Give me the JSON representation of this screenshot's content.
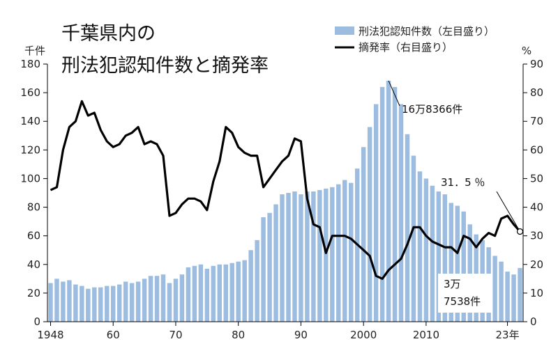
{
  "chart_data": {
    "type": "bar+line",
    "title_lines": [
      "千葉県内の",
      "刑法犯認知件数と摘発率"
    ],
    "y_left_unit": "千件",
    "y_right_unit": "%",
    "ylim_left": [
      0,
      180
    ],
    "ylim_right": [
      0,
      90
    ],
    "y_left_ticks": [
      "0",
      "20",
      "40",
      "60",
      "80",
      "100",
      "120",
      "140",
      "160",
      "180"
    ],
    "y_right_ticks": [
      "0",
      "10",
      "20",
      "30",
      "40",
      "50",
      "60",
      "70",
      "80",
      "90"
    ],
    "x_ticks": [
      {
        "year": 1948,
        "label": "1948"
      },
      {
        "year": 1958,
        "label": "60"
      },
      {
        "year": 1968,
        "label": "70"
      },
      {
        "year": 1978,
        "label": "80"
      },
      {
        "year": 1988,
        "label": "90"
      },
      {
        "year": 1998,
        "label": "2000"
      },
      {
        "year": 2008,
        "label": "2010"
      },
      {
        "year": 2021,
        "label": "23年"
      }
    ],
    "years": [
      1948,
      1949,
      1950,
      1951,
      1952,
      1953,
      1954,
      1955,
      1956,
      1957,
      1958,
      1959,
      1960,
      1961,
      1962,
      1963,
      1964,
      1965,
      1966,
      1967,
      1968,
      1969,
      1970,
      1971,
      1972,
      1973,
      1974,
      1975,
      1976,
      1977,
      1978,
      1979,
      1980,
      1981,
      1982,
      1983,
      1984,
      1985,
      1986,
      1987,
      1988,
      1989,
      1990,
      1991,
      1992,
      1993,
      1994,
      1995,
      1996,
      1997,
      1998,
      1999,
      2000,
      2001,
      2002,
      2003,
      2004,
      2005,
      2006,
      2007,
      2008,
      2009,
      2010,
      2011,
      2012,
      2013,
      2014,
      2015,
      2016,
      2017,
      2018,
      2019,
      2020,
      2021,
      2022,
      2023
    ],
    "series": [
      {
        "name": "刑法犯認知件数（左目盛り）",
        "axis": "left",
        "type": "bar",
        "color": "#9dbde0",
        "values": [
          27,
          30,
          28,
          29,
          26,
          25,
          23,
          24,
          24,
          25,
          25,
          26,
          28,
          27,
          28,
          30,
          32,
          32,
          33,
          27,
          30,
          33,
          38,
          39,
          40,
          37,
          39,
          40,
          40,
          41,
          42,
          43,
          50,
          57,
          73,
          76,
          82,
          89,
          90,
          91,
          89,
          91,
          91,
          92,
          93,
          94,
          96,
          99,
          97,
          107,
          122,
          136,
          152,
          164,
          168.366,
          164,
          152,
          131,
          116,
          105,
          100,
          95,
          91,
          89,
          83,
          81,
          77,
          68,
          61,
          57,
          52,
          46,
          42,
          35,
          33,
          37.538
        ]
      },
      {
        "name": "摘発率（右目盛り）",
        "axis": "right",
        "type": "line",
        "color": "#000000",
        "values": [
          46,
          47,
          60,
          68,
          70,
          77,
          72,
          73,
          67,
          63,
          61,
          62,
          65,
          66,
          68,
          62,
          63,
          62,
          58,
          37,
          38,
          41,
          43,
          43,
          42,
          39,
          49,
          56,
          68,
          66,
          61,
          59,
          58,
          58,
          47,
          50,
          53,
          56,
          58,
          64,
          63,
          43,
          34,
          33,
          24,
          30,
          30,
          30,
          29,
          27,
          25,
          23,
          16,
          15,
          18,
          20,
          22,
          27,
          33,
          33,
          30,
          28,
          27,
          26,
          26,
          24,
          30,
          29,
          26,
          29,
          31,
          30,
          36,
          37,
          34,
          31.5
        ]
      }
    ],
    "annotations": [
      {
        "text": "16万8366件",
        "year": 2002,
        "value": 168.366,
        "axis": "left"
      },
      {
        "text": "31．5 ％",
        "year": 2023,
        "value": 31.5,
        "axis": "right"
      },
      {
        "text_lines": [
          "3万",
          "7538件"
        ],
        "year": 2023,
        "value": 37.538,
        "axis": "left"
      }
    ]
  }
}
